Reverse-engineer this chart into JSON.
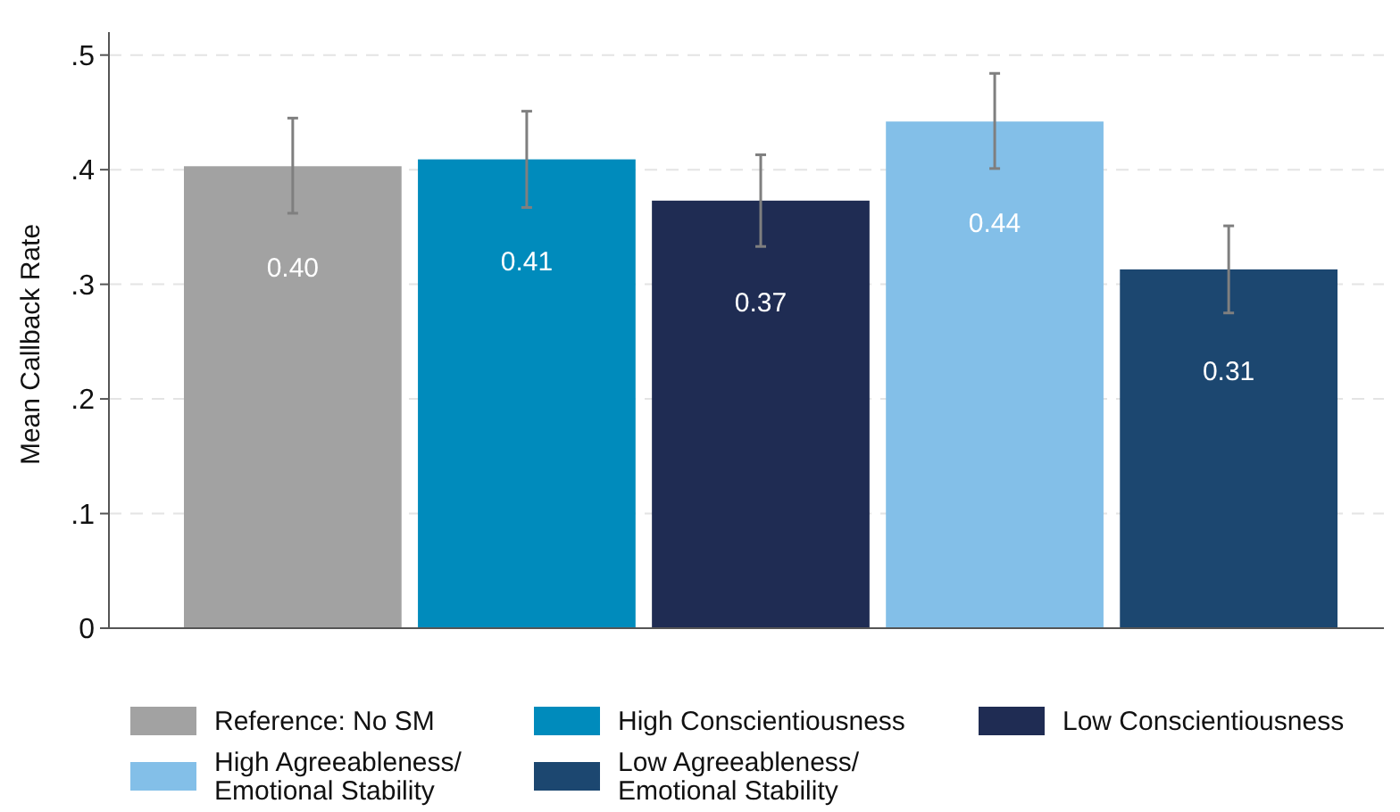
{
  "chart_data": {
    "type": "bar",
    "ylabel": "Mean Callback Rate",
    "categories": [
      null,
      null,
      null,
      null,
      null
    ],
    "series": [
      {
        "name": "Reference: No SM",
        "color": "#a2a2a2",
        "values": [
          0.403,
          null,
          null,
          null,
          null
        ],
        "errors": [
          [
            0.362,
            0.445
          ],
          null,
          null,
          null,
          null
        ],
        "value_labels": [
          "0.40",
          null,
          null,
          null,
          null
        ]
      },
      {
        "name": "High Conscientiousness",
        "color": "#008bbc",
        "values": [
          null,
          0.409,
          null,
          null,
          null
        ],
        "errors": [
          null,
          [
            0.367,
            0.451
          ],
          null,
          null,
          null
        ],
        "value_labels": [
          null,
          "0.41",
          null,
          null,
          null
        ]
      },
      {
        "name": "Low Conscientiousness",
        "color": "#1f2c53",
        "values": [
          null,
          null,
          0.373,
          null,
          null
        ],
        "errors": [
          null,
          null,
          [
            0.333,
            0.413
          ],
          null,
          null
        ],
        "value_labels": [
          null,
          null,
          "0.37",
          null,
          null
        ]
      },
      {
        "name": "High Agreeableness/ Emotional Stability",
        "color": "#83bfe8",
        "values": [
          null,
          null,
          null,
          0.442,
          null
        ],
        "errors": [
          null,
          null,
          null,
          [
            0.401,
            0.484
          ],
          null
        ],
        "value_labels": [
          null,
          null,
          null,
          "0.44",
          null
        ]
      },
      {
        "name": "Low Agreeableness/ Emotional Stability",
        "color": "#1c4770",
        "values": [
          null,
          null,
          null,
          null,
          0.313
        ],
        "errors": [
          null,
          null,
          null,
          null,
          [
            0.275,
            0.351
          ]
        ],
        "value_labels": [
          null,
          null,
          null,
          null,
          "0.31"
        ]
      }
    ],
    "ylim": [
      0,
      0.52
    ],
    "yticks": [
      {
        "value": 0,
        "label": "0"
      },
      {
        "value": 0.1,
        "label": ".1"
      },
      {
        "value": 0.2,
        "label": ".2"
      },
      {
        "value": 0.3,
        "label": ".3"
      },
      {
        "value": 0.4,
        "label": ".4"
      },
      {
        "value": 0.5,
        "label": ".5"
      }
    ],
    "grid": "y",
    "legend": "bottom"
  }
}
